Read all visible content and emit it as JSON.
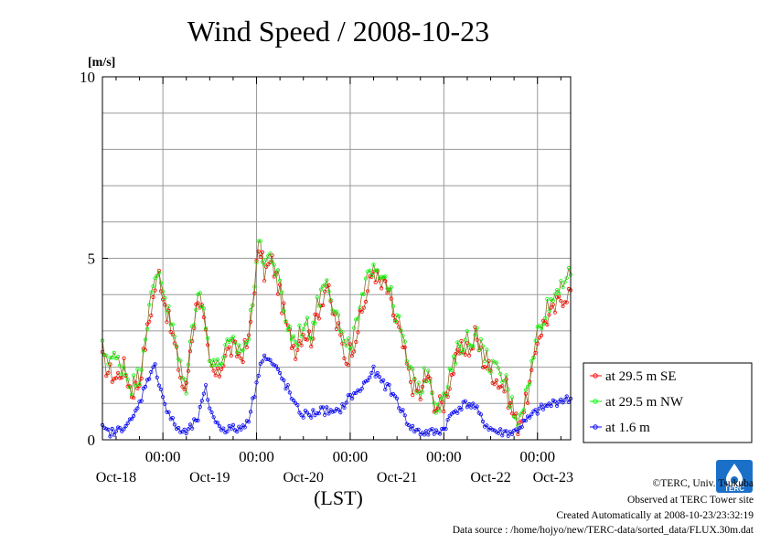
{
  "chart_data": {
    "type": "line",
    "title": "Wind Speed / 2008-10-23",
    "yunit": "[m/s]",
    "xlabel": "(LST)",
    "ylim": [
      0,
      10
    ],
    "yticks": [
      0,
      5,
      10
    ],
    "grid": true,
    "x_range_hours": [
      -15.5,
      104.5
    ],
    "midnight_ticks": [
      "00:00",
      "00:00",
      "00:00",
      "00:00",
      "00:00"
    ],
    "date_ticks": [
      "Oct-18",
      "Oct-19",
      "Oct-20",
      "Oct-21",
      "Oct-22",
      "Oct-23"
    ],
    "legend_position": "right",
    "series": [
      {
        "name": "at 29.5 m SE",
        "color": "#ff0000",
        "knots": [
          [
            -15.5,
            2.2
          ],
          [
            -14,
            1.9
          ],
          [
            -12,
            1.7
          ],
          [
            -10,
            2.0
          ],
          [
            -8,
            1.3
          ],
          [
            -6,
            1.6
          ],
          [
            -4,
            3.0
          ],
          [
            -2,
            4.2
          ],
          [
            -1,
            4.6
          ],
          [
            1,
            3.5
          ],
          [
            3,
            2.6
          ],
          [
            5,
            1.5
          ],
          [
            6,
            1.4
          ],
          [
            7,
            2.5
          ],
          [
            9,
            4.0
          ],
          [
            10,
            3.6
          ],
          [
            12,
            2.0
          ],
          [
            14,
            1.7
          ],
          [
            16,
            2.4
          ],
          [
            18,
            2.5
          ],
          [
            20,
            2.3
          ],
          [
            22,
            2.7
          ],
          [
            24,
            4.8
          ],
          [
            25,
            5.2
          ],
          [
            26,
            4.6
          ],
          [
            28,
            4.9
          ],
          [
            30,
            4.0
          ],
          [
            32,
            3.0
          ],
          [
            34,
            2.5
          ],
          [
            36,
            3.0
          ],
          [
            38,
            2.8
          ],
          [
            40,
            3.6
          ],
          [
            42,
            4.3
          ],
          [
            43,
            3.7
          ],
          [
            45,
            3.0
          ],
          [
            47,
            2.2
          ],
          [
            49,
            2.7
          ],
          [
            52,
            3.9
          ],
          [
            54,
            4.7
          ],
          [
            56,
            4.2
          ],
          [
            57,
            4.3
          ],
          [
            59,
            3.5
          ],
          [
            61,
            2.8
          ],
          [
            63,
            1.8
          ],
          [
            64,
            1.5
          ],
          [
            66,
            1.2
          ],
          [
            68,
            1.8
          ],
          [
            69,
            1.2
          ],
          [
            70,
            0.9
          ],
          [
            72,
            1.0
          ],
          [
            74,
            1.8
          ],
          [
            76,
            2.4
          ],
          [
            78,
            2.6
          ],
          [
            79,
            2.4
          ],
          [
            80,
            2.9
          ],
          [
            82,
            2.2
          ],
          [
            84,
            1.9
          ],
          [
            86,
            1.6
          ],
          [
            88,
            1.4
          ],
          [
            89,
            0.9
          ],
          [
            91,
            0.4
          ],
          [
            93,
            1.0
          ],
          [
            95,
            2.0
          ],
          [
            96,
            2.8
          ],
          [
            98,
            3.3
          ],
          [
            100,
            3.5
          ],
          [
            102,
            3.9
          ],
          [
            104.5,
            4.1
          ]
        ]
      },
      {
        "name": "at 29.5 m NW",
        "color": "#00ff00",
        "knots": [
          [
            -15.5,
            2.5
          ],
          [
            -14,
            2.3
          ],
          [
            -12,
            2.2
          ],
          [
            -10,
            2.0
          ],
          [
            -8,
            1.5
          ],
          [
            -6,
            1.8
          ],
          [
            -4,
            3.3
          ],
          [
            -2,
            4.4
          ],
          [
            -1,
            4.7
          ],
          [
            1,
            3.7
          ],
          [
            3,
            2.8
          ],
          [
            5,
            1.7
          ],
          [
            6,
            1.5
          ],
          [
            7,
            2.6
          ],
          [
            9,
            4.2
          ],
          [
            10,
            3.8
          ],
          [
            12,
            2.4
          ],
          [
            14,
            2.0
          ],
          [
            16,
            2.5
          ],
          [
            18,
            2.6
          ],
          [
            20,
            2.5
          ],
          [
            22,
            2.8
          ],
          [
            24,
            5.0
          ],
          [
            25,
            5.4
          ],
          [
            26,
            4.9
          ],
          [
            28,
            5.1
          ],
          [
            30,
            4.2
          ],
          [
            32,
            3.1
          ],
          [
            34,
            2.7
          ],
          [
            36,
            3.2
          ],
          [
            38,
            3.0
          ],
          [
            40,
            3.9
          ],
          [
            42,
            4.6
          ],
          [
            43,
            4.0
          ],
          [
            45,
            3.3
          ],
          [
            47,
            2.4
          ],
          [
            49,
            2.9
          ],
          [
            52,
            4.2
          ],
          [
            54,
            5.0
          ],
          [
            56,
            4.5
          ],
          [
            57,
            4.6
          ],
          [
            59,
            3.7
          ],
          [
            61,
            3.0
          ],
          [
            63,
            2.0
          ],
          [
            64,
            1.7
          ],
          [
            66,
            1.4
          ],
          [
            68,
            2.0
          ],
          [
            69,
            1.4
          ],
          [
            70,
            1.0
          ],
          [
            72,
            1.1
          ],
          [
            74,
            1.9
          ],
          [
            76,
            2.6
          ],
          [
            78,
            2.8
          ],
          [
            79,
            2.6
          ],
          [
            80,
            3.1
          ],
          [
            82,
            2.4
          ],
          [
            84,
            2.1
          ],
          [
            86,
            1.8
          ],
          [
            88,
            1.6
          ],
          [
            89,
            1.1
          ],
          [
            91,
            0.6
          ],
          [
            93,
            1.2
          ],
          [
            95,
            2.3
          ],
          [
            96,
            3.0
          ],
          [
            98,
            3.6
          ],
          [
            100,
            3.9
          ],
          [
            102,
            4.4
          ],
          [
            104.5,
            4.5
          ]
        ]
      },
      {
        "name": "at 1.6 m",
        "color": "#0000ff",
        "knots": [
          [
            -15.5,
            0.3
          ],
          [
            -14,
            0.2
          ],
          [
            -12,
            0.2
          ],
          [
            -10,
            0.4
          ],
          [
            -8,
            0.5
          ],
          [
            -6,
            1.0
          ],
          [
            -4,
            1.7
          ],
          [
            -2,
            2.0
          ],
          [
            -1,
            1.6
          ],
          [
            1,
            0.8
          ],
          [
            3,
            0.4
          ],
          [
            5,
            0.2
          ],
          [
            6,
            0.2
          ],
          [
            7,
            0.3
          ],
          [
            9,
            0.6
          ],
          [
            10,
            1.0
          ],
          [
            11,
            1.4
          ],
          [
            12,
            0.9
          ],
          [
            14,
            0.4
          ],
          [
            16,
            0.3
          ],
          [
            18,
            0.3
          ],
          [
            20,
            0.3
          ],
          [
            22,
            0.6
          ],
          [
            24,
            1.5
          ],
          [
            25,
            2.2
          ],
          [
            26,
            2.3
          ],
          [
            28,
            2.1
          ],
          [
            30,
            1.8
          ],
          [
            32,
            1.4
          ],
          [
            34,
            0.9
          ],
          [
            36,
            0.7
          ],
          [
            38,
            0.7
          ],
          [
            40,
            0.8
          ],
          [
            42,
            0.8
          ],
          [
            44,
            0.7
          ],
          [
            46,
            0.9
          ],
          [
            48,
            1.2
          ],
          [
            50,
            1.3
          ],
          [
            52,
            1.6
          ],
          [
            54,
            1.9
          ],
          [
            56,
            1.6
          ],
          [
            58,
            1.4
          ],
          [
            60,
            1.1
          ],
          [
            62,
            0.6
          ],
          [
            64,
            0.3
          ],
          [
            66,
            0.2
          ],
          [
            68,
            0.2
          ],
          [
            70,
            0.2
          ],
          [
            72,
            0.3
          ],
          [
            74,
            0.7
          ],
          [
            76,
            0.9
          ],
          [
            78,
            1.0
          ],
          [
            80,
            0.9
          ],
          [
            82,
            0.5
          ],
          [
            84,
            0.3
          ],
          [
            86,
            0.2
          ],
          [
            88,
            0.2
          ],
          [
            90,
            0.2
          ],
          [
            92,
            0.4
          ],
          [
            94,
            0.6
          ],
          [
            96,
            0.8
          ],
          [
            98,
            0.9
          ],
          [
            100,
            1.0
          ],
          [
            102,
            1.1
          ],
          [
            104.5,
            1.1
          ]
        ]
      }
    ]
  },
  "footer": {
    "copyright": "©TERC, Univ. Tsukuba",
    "observed": "Observed at TERC Tower site",
    "created": "Created Automatically at 2008-10-23/23:32:19",
    "source": "Data source : /home/hojyo/new/TERC-data/sorted_data/FLUX.30m.dat"
  },
  "logo": {
    "text": "TERC",
    "color": "#1a6fc9",
    "icon": "terc-water-drop-logo"
  }
}
